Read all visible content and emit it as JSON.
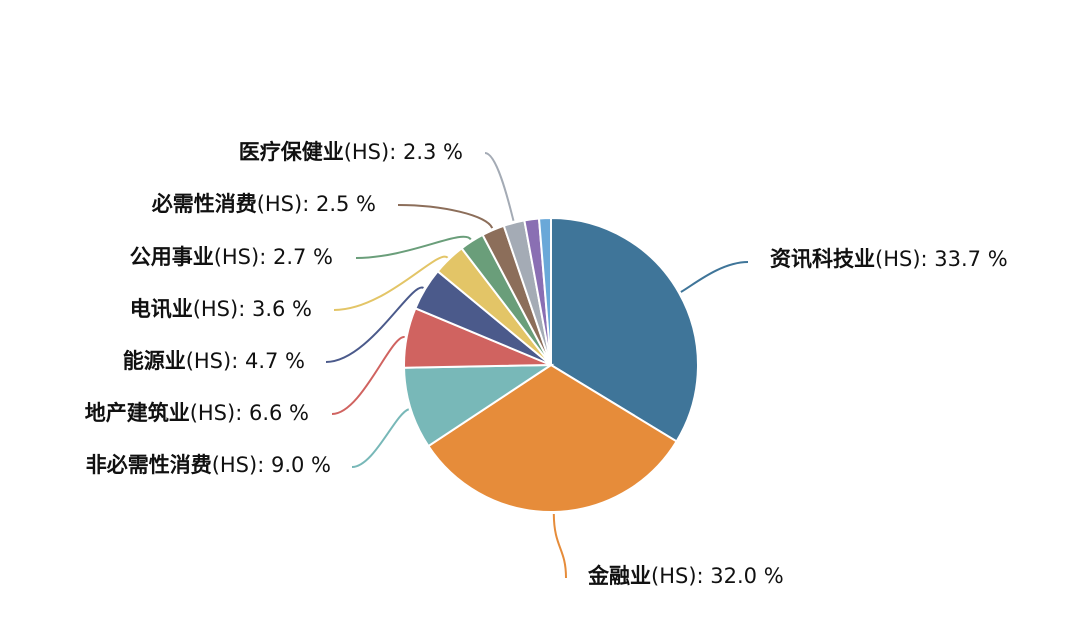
{
  "chart_data": {
    "type": "pie",
    "title": "",
    "start_angle_deg": 90,
    "direction": "clockwise",
    "slices": [
      {
        "name": "资讯科技业",
        "suffix": "(HS): 33.7 %",
        "value": 33.7,
        "color": "#3f7599"
      },
      {
        "name": "金融业",
        "suffix": "(HS): 32.0 %",
        "value": 32.0,
        "color": "#e68c3a"
      },
      {
        "name": "非必需性消费",
        "suffix": "(HS): 9.0 %",
        "value": 9.0,
        "color": "#78b8b8"
      },
      {
        "name": "地产建筑业",
        "suffix": "(HS): 6.6 %",
        "value": 6.6,
        "color": "#d06360"
      },
      {
        "name": "能源业",
        "suffix": "(HS): 4.7 %",
        "value": 4.7,
        "color": "#4b5a8b"
      },
      {
        "name": "电讯业",
        "suffix": "(HS): 3.6 %",
        "value": 3.6,
        "color": "#e3c567"
      },
      {
        "name": "公用事业",
        "suffix": "(HS): 2.7 %",
        "value": 2.7,
        "color": "#6a9e7a"
      },
      {
        "name": "必需性消费",
        "suffix": "(HS): 2.5 %",
        "value": 2.5,
        "color": "#8c6e5a"
      },
      {
        "name": "医疗保健业",
        "suffix": "(HS): 2.3 %",
        "value": 2.3,
        "color": "#a4abb5"
      },
      {
        "name": "",
        "suffix": "",
        "value": 1.6,
        "color": "#8a6fb3"
      },
      {
        "name": "",
        "suffix": "",
        "value": 1.3,
        "color": "#6aa8d8"
      }
    ]
  }
}
